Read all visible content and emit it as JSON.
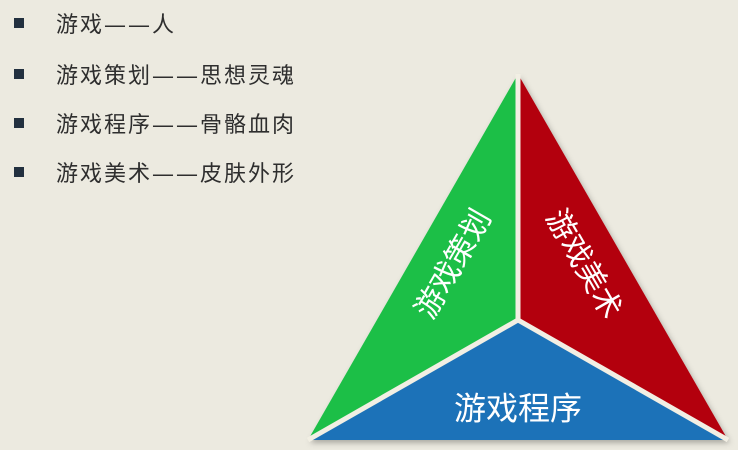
{
  "bullets": [
    {
      "text": "游戏——人"
    },
    {
      "text": "游戏策划——思想灵魂"
    },
    {
      "text": "游戏程序——骨骼血肉"
    },
    {
      "text": "游戏美术——皮肤外形"
    }
  ],
  "diagram": {
    "left_label": "游戏策划",
    "right_label": "游戏美术",
    "bottom_label": "游戏程序",
    "colors": {
      "left": "#1fbf47",
      "right": "#b3000f",
      "bottom": "#1a72b8",
      "divider": "#f2efe4"
    }
  }
}
